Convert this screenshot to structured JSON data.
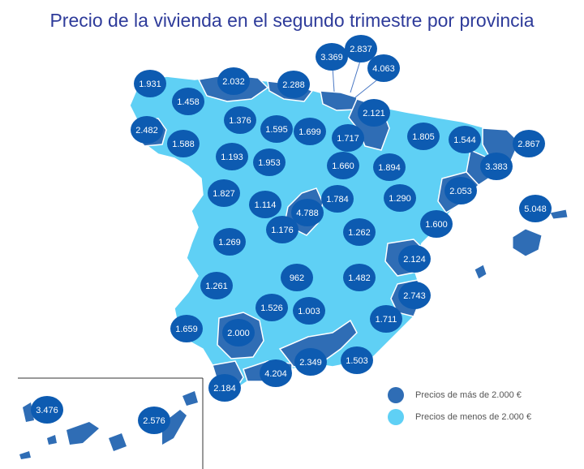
{
  "title": "Precio de la vivienda en el segundo trimestre por provincia",
  "colors": {
    "high": "#2f6db5",
    "low": "#5fd0f5",
    "bubble": "#0d5bb1",
    "text": "#ffffff"
  },
  "legend": {
    "high_label": "Precios de más de 2.000 €",
    "low_label": "Precios de menos de 2.000 €"
  },
  "map_data": {
    "type": "choropleth",
    "threshold": 2000,
    "provinces": [
      {
        "id": "a-coruna",
        "value": 1.931,
        "label": "1.931"
      },
      {
        "id": "lugo",
        "value": 1.458,
        "label": "1.458"
      },
      {
        "id": "pontevedra",
        "value": 2.482,
        "label": "2.482"
      },
      {
        "id": "ourense",
        "value": 1.588,
        "label": "1.588"
      },
      {
        "id": "asturias",
        "value": 2.032,
        "label": "2.032"
      },
      {
        "id": "cantabria",
        "value": 2.288,
        "label": "2.288"
      },
      {
        "id": "bizkaia",
        "value": 3.369,
        "label": "3.369"
      },
      {
        "id": "gipuzkoa",
        "value": 2.837,
        "label": "2.837"
      },
      {
        "id": "araba",
        "value": 4.063,
        "label": "4.063"
      },
      {
        "id": "navarra",
        "value": 2.121,
        "label": "2.121"
      },
      {
        "id": "leon",
        "value": 1.376,
        "label": "1.376"
      },
      {
        "id": "palencia",
        "value": 1.595,
        "label": "1.595"
      },
      {
        "id": "burgos",
        "value": 1.699,
        "label": "1.699"
      },
      {
        "id": "la-rioja",
        "value": 1.717,
        "label": "1.717"
      },
      {
        "id": "huesca",
        "value": 1.805,
        "label": "1.805"
      },
      {
        "id": "lleida",
        "value": 1.544,
        "label": "1.544"
      },
      {
        "id": "girona",
        "value": 2.867,
        "label": "2.867"
      },
      {
        "id": "barcelona",
        "value": 3.383,
        "label": "3.383"
      },
      {
        "id": "zamora",
        "value": 1.193,
        "label": "1.193"
      },
      {
        "id": "valladolid",
        "value": 1.953,
        "label": "1.953"
      },
      {
        "id": "soria",
        "value": 1.66,
        "label": "1.660"
      },
      {
        "id": "zaragoza",
        "value": 1.894,
        "label": "1.894"
      },
      {
        "id": "tarragona",
        "value": 2.053,
        "label": "2.053"
      },
      {
        "id": "salamanca",
        "value": 1.827,
        "label": "1.827"
      },
      {
        "id": "avila",
        "value": 1.114,
        "label": "1.114"
      },
      {
        "id": "segovia",
        "value": 1.784,
        "label": "1.784"
      },
      {
        "id": "madrid",
        "value": 4.788,
        "label": "4.788"
      },
      {
        "id": "guadalajara",
        "value": 1.29,
        "label": "1.290"
      },
      {
        "id": "teruel",
        "value": 1.262,
        "label": "1.262"
      },
      {
        "id": "castellon",
        "value": 1.6,
        "label": "1.600"
      },
      {
        "id": "baleares",
        "value": 5.048,
        "label": "5.048"
      },
      {
        "id": "caceres",
        "value": 1.269,
        "label": "1.269"
      },
      {
        "id": "toledo",
        "value": 1.176,
        "label": "1.176"
      },
      {
        "id": "valencia",
        "value": 2.124,
        "label": "2.124"
      },
      {
        "id": "badajoz",
        "value": 1.261,
        "label": "1.261"
      },
      {
        "id": "ciudad-real",
        "value": 0.962,
        "label": "962"
      },
      {
        "id": "cuenca",
        "value": 1.482,
        "label": "1.482"
      },
      {
        "id": "alicante",
        "value": 2.743,
        "label": "2.743"
      },
      {
        "id": "cordoba",
        "value": 1.526,
        "label": "1.526"
      },
      {
        "id": "jaen",
        "value": 1.003,
        "label": "1.003"
      },
      {
        "id": "albacete",
        "value": 1.711,
        "label": "1.711"
      },
      {
        "id": "huelva",
        "value": 1.659,
        "label": "1.659"
      },
      {
        "id": "sevilla",
        "value": 2.0,
        "label": "2.000"
      },
      {
        "id": "granada",
        "value": 2.349,
        "label": "2.349"
      },
      {
        "id": "murcia",
        "value": 1.503,
        "label": "1.503"
      },
      {
        "id": "malaga",
        "value": 4.204,
        "label": "4.204"
      },
      {
        "id": "cadiz",
        "value": 2.184,
        "label": "2.184"
      },
      {
        "id": "santa-cruz-de-tenerife",
        "value": 3.476,
        "label": "3.476"
      },
      {
        "id": "las-palmas",
        "value": 2.576,
        "label": "2.576"
      }
    ]
  }
}
